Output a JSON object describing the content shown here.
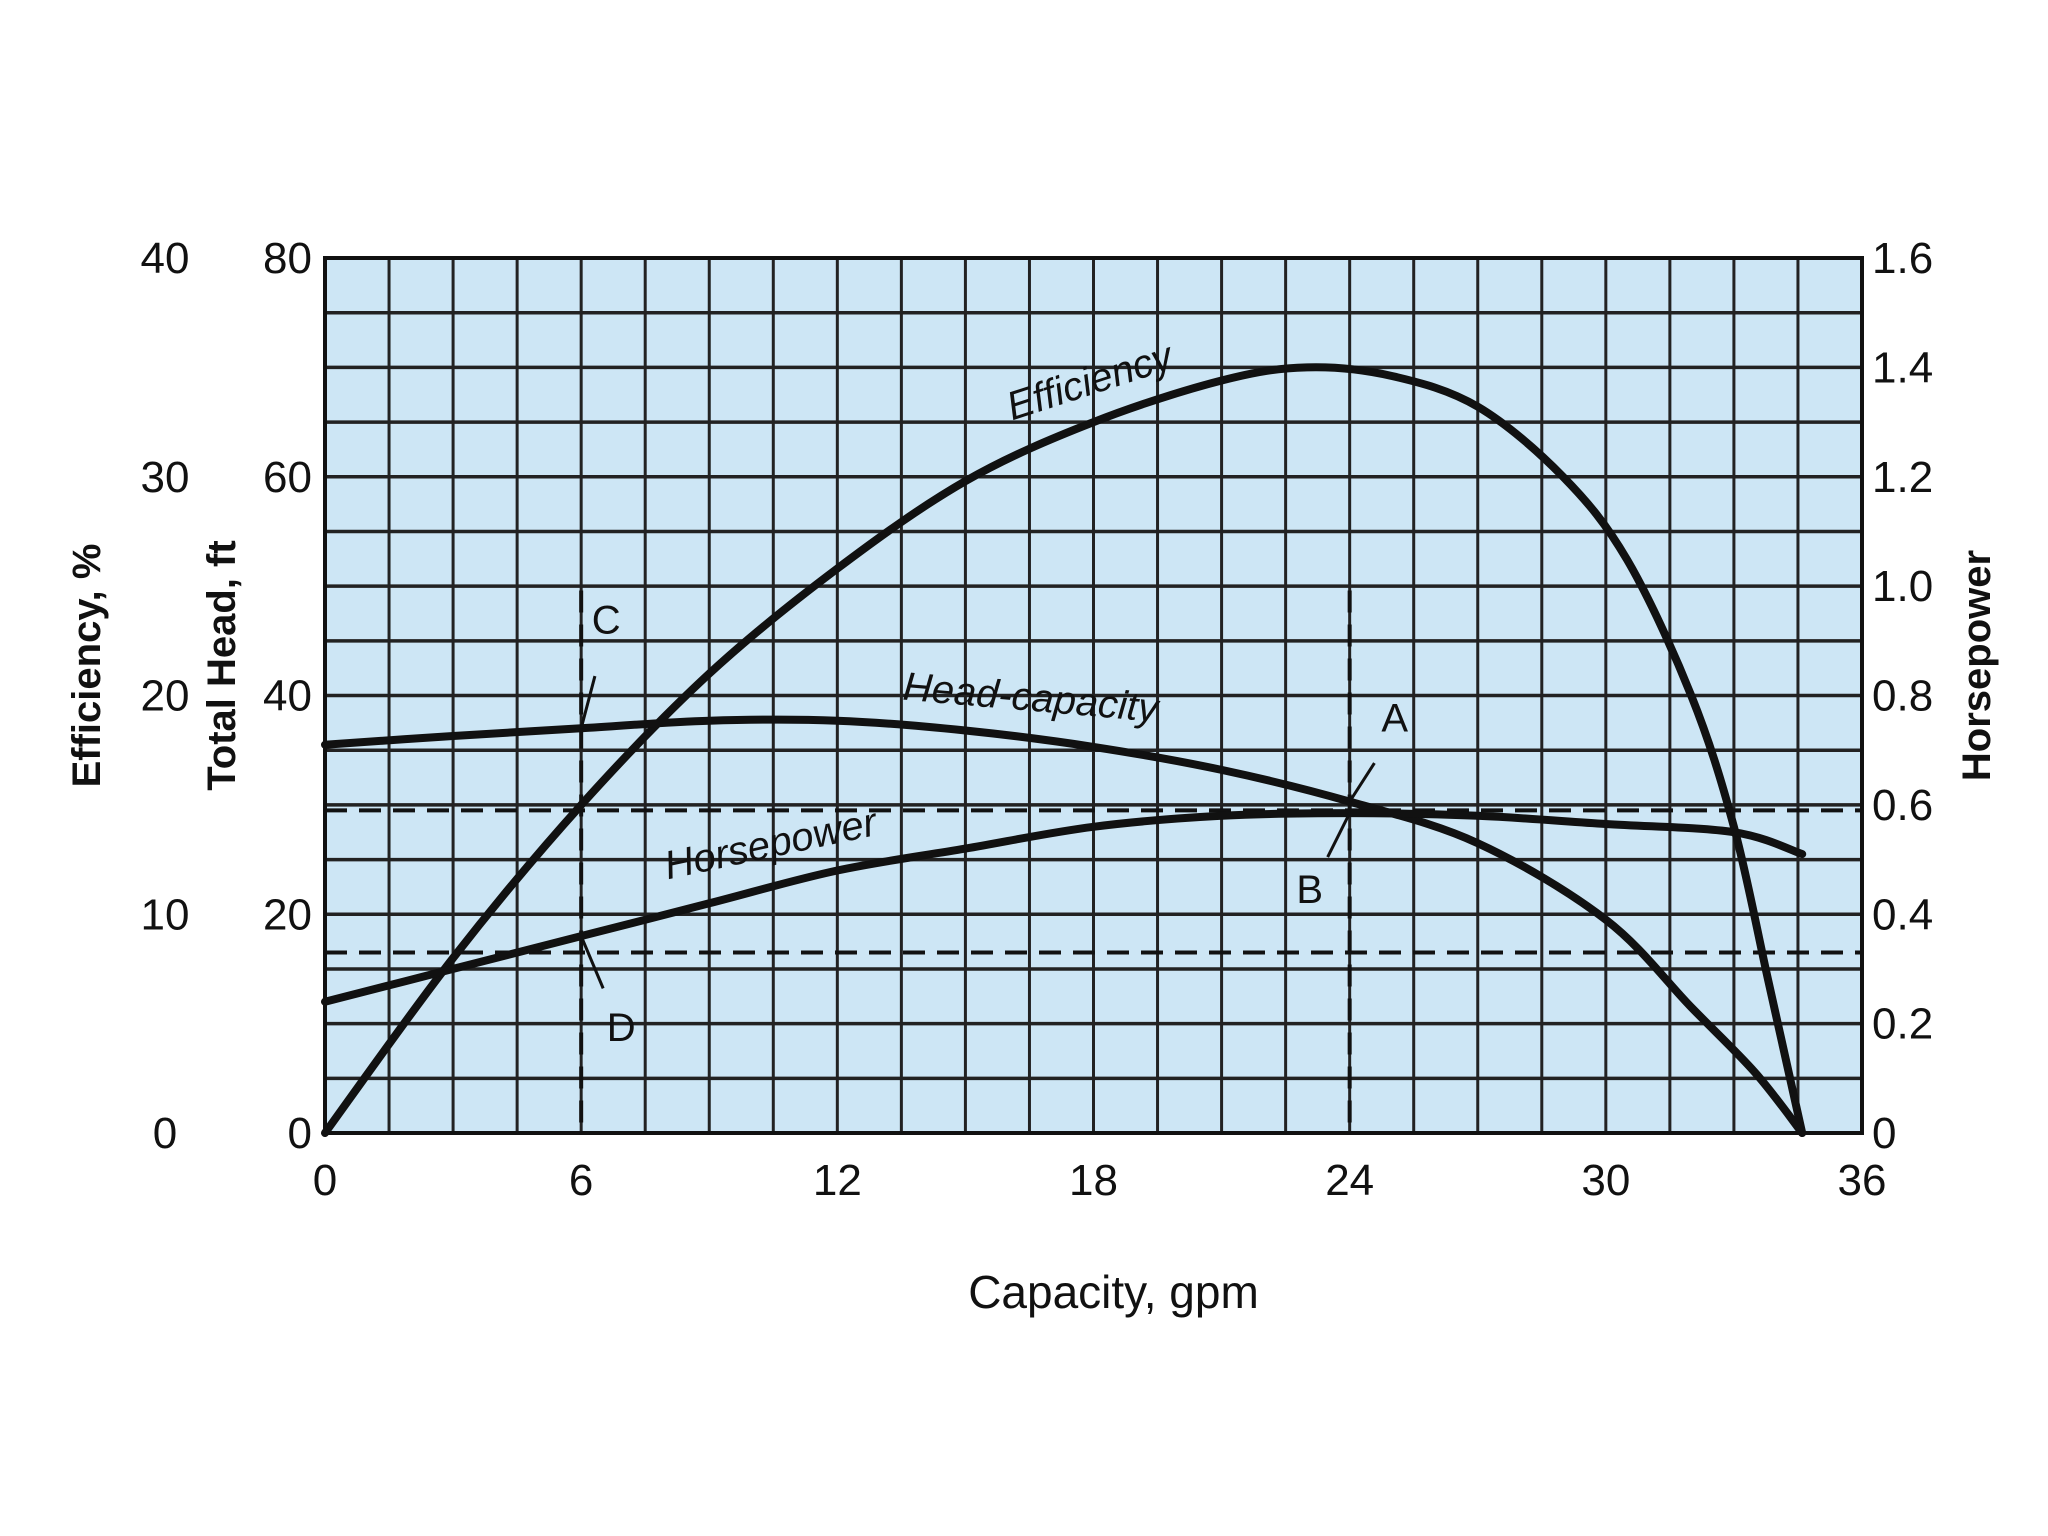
{
  "chart_data": {
    "type": "line",
    "title": "",
    "xlabel": "Capacity, gpm",
    "x_ticks": [
      "0",
      "6",
      "12",
      "18",
      "24",
      "30",
      "36"
    ],
    "xlim": [
      0,
      36
    ],
    "y_axes": [
      {
        "label": "Efficiency, %",
        "side": "left-outer",
        "ticks": [
          "0",
          "10",
          "20",
          "30",
          "40"
        ],
        "lim": [
          0,
          40
        ]
      },
      {
        "label": "Total Head, ft",
        "side": "left-inner",
        "ticks": [
          "0",
          "20",
          "40",
          "60",
          "80"
        ],
        "lim": [
          0,
          80
        ]
      },
      {
        "label": "Horsepower",
        "side": "right",
        "ticks": [
          "0",
          "0.2",
          "0.4",
          "0.6",
          "0.8",
          "1.0",
          "1.2",
          "1.4",
          "1.6"
        ],
        "lim": [
          0,
          1.6
        ]
      }
    ],
    "grid": true,
    "background_color": "#cde6f5",
    "series": [
      {
        "name": "Efficiency",
        "axis": "Efficiency, %",
        "x": [
          0,
          3,
          6,
          9,
          12,
          15,
          18,
          21,
          23,
          25,
          27,
          29,
          30.5,
          32,
          33,
          33.8,
          34.6
        ],
        "values": [
          0,
          8,
          15,
          21,
          25.8,
          29.8,
          32.5,
          34.4,
          35,
          34.6,
          33.2,
          30,
          26.2,
          20,
          14,
          7,
          0
        ]
      },
      {
        "name": "Head-capacity",
        "axis": "Total Head, ft",
        "x": [
          0,
          3,
          6,
          9,
          12,
          15,
          18,
          21,
          24,
          27,
          30,
          32,
          33.5,
          34.6
        ],
        "values": [
          35.5,
          36.3,
          37,
          37.7,
          37.7,
          36.8,
          35.3,
          33.2,
          30.3,
          26.5,
          19.5,
          11.5,
          5.5,
          0
        ]
      },
      {
        "name": "Horsepower",
        "axis": "Horsepower",
        "x": [
          0,
          3,
          6,
          9,
          12,
          15,
          18,
          21,
          24,
          27,
          30,
          33,
          34.6
        ],
        "values": [
          0.24,
          0.3,
          0.36,
          0.42,
          0.48,
          0.52,
          0.56,
          0.58,
          0.585,
          0.58,
          0.565,
          0.55,
          0.51
        ]
      }
    ],
    "reference_lines": [
      {
        "orientation": "horizontal",
        "axis": "Total Head, ft",
        "value": 29.5
      },
      {
        "orientation": "horizontal",
        "axis": "Total Head, ft",
        "value": 16.5
      },
      {
        "orientation": "vertical",
        "x": 6
      },
      {
        "orientation": "vertical",
        "x": 24
      }
    ],
    "annotations": [
      {
        "text": "A",
        "x": 24,
        "axis": "Total Head, ft",
        "y": 30.3
      },
      {
        "text": "B",
        "x": 24,
        "axis": "Horsepower",
        "y": 0.585
      },
      {
        "text": "C",
        "x": 6,
        "axis": "Total Head, ft",
        "y": 37
      },
      {
        "text": "D",
        "x": 6,
        "axis": "Horsepower",
        "y": 0.36
      }
    ]
  }
}
